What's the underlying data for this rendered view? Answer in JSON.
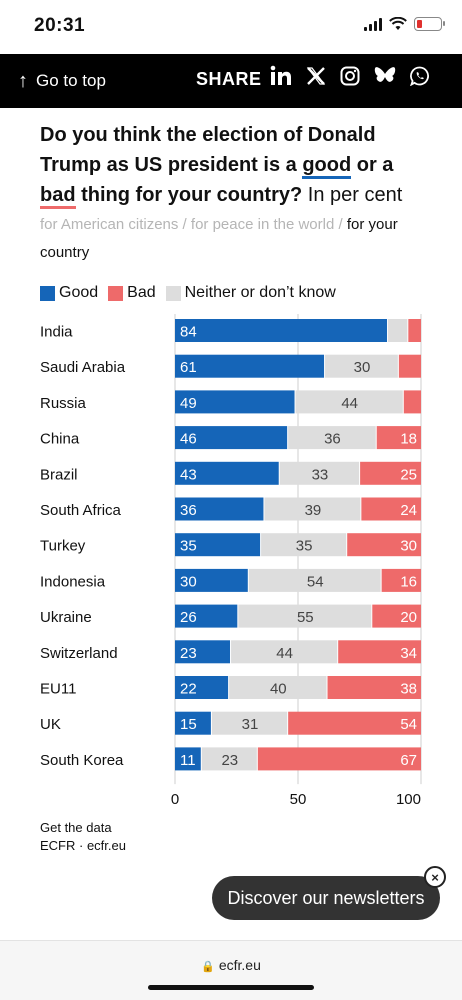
{
  "status_bar": {
    "time": "20:31"
  },
  "topbar": {
    "go_to_top": "Go to top",
    "share": "SHARE",
    "social_icons": [
      "linkedin-icon",
      "x-icon",
      "instagram-icon",
      "bluesky-icon",
      "whatsapp-icon"
    ]
  },
  "headline": {
    "part1": "Do you think the election of Donald Trump as US president is a ",
    "good": "good",
    "part2": " or a ",
    "bad": "bad",
    "part3": " thing for your country?",
    "unit": " In per cent"
  },
  "tabs": {
    "inactive_1": "for American citizens",
    "separator": " / ",
    "inactive_2": "for peace in the world",
    "active": "for your country"
  },
  "legend": {
    "good": "Good",
    "bad": "Bad",
    "neither": "Neither or don’t know"
  },
  "colors": {
    "good": "#1565b8",
    "bad": "#ee6a6a",
    "neither": "#dddddd"
  },
  "chart_data": {
    "type": "bar",
    "orientation": "horizontal-stacked",
    "categories": [
      "India",
      "Saudi Arabia",
      "Russia",
      "China",
      "Brazil",
      "South Africa",
      "Turkey",
      "Indonesia",
      "Ukraine",
      "Switzerland",
      "EU11",
      "UK",
      "South Korea"
    ],
    "series": [
      {
        "name": "Good",
        "values": [
          84,
          61,
          49,
          46,
          43,
          36,
          35,
          30,
          26,
          23,
          22,
          15,
          11
        ]
      },
      {
        "name": "Neither or don’t know",
        "values": [
          8,
          30,
          44,
          36,
          33,
          39,
          35,
          54,
          55,
          44,
          40,
          31,
          23
        ]
      },
      {
        "name": "Bad",
        "values": [
          5,
          9,
          7,
          18,
          25,
          24,
          30,
          16,
          20,
          34,
          38,
          54,
          67
        ]
      }
    ],
    "value_labels": [
      [
        "84",
        "",
        ""
      ],
      [
        "61",
        "30",
        ""
      ],
      [
        "49",
        "44",
        ""
      ],
      [
        "46",
        "36",
        "18"
      ],
      [
        "43",
        "33",
        "25"
      ],
      [
        "36",
        "39",
        "24"
      ],
      [
        "35",
        "35",
        "30"
      ],
      [
        "30",
        "54",
        "16"
      ],
      [
        "26",
        "55",
        "20"
      ],
      [
        "23",
        "44",
        "34"
      ],
      [
        "22",
        "40",
        "38"
      ],
      [
        "15",
        "31",
        "54"
      ],
      [
        "11",
        "23",
        "67"
      ]
    ],
    "xlim": [
      0,
      100
    ],
    "xticks": [
      "0",
      "50",
      "100"
    ],
    "grid": true
  },
  "footer": {
    "get_data": "Get the data",
    "source": "ECFR · ecfr.eu"
  },
  "newsletter": {
    "label": "Discover our newsletters",
    "close": "×"
  },
  "browser": {
    "url": "ecfr.eu"
  }
}
